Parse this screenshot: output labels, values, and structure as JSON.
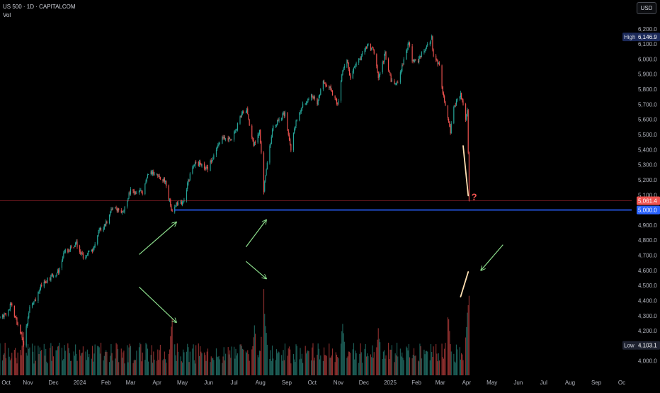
{
  "header": {
    "symbol_line": "US 500 · 1D · CAPITALCOM",
    "volume_label": "Vol",
    "currency": "USD"
  },
  "colors": {
    "background": "#000000",
    "up": "#26a69a",
    "down": "#ef5350",
    "vol_up": "#1d5f58",
    "vol_down": "#8c2f2e",
    "support_line": "#2962ff",
    "price_line": "#f23645",
    "axis_text": "#b2b5be",
    "arrow": "#8bdc8b",
    "highlight_line": "#ffe0b2",
    "high_badge": "#1c2a5a",
    "low_badge": "#1e2230"
  },
  "chart_data": {
    "type": "candlestick",
    "x_ticks": [
      "Oct",
      "Nov",
      "Dec",
      "2024",
      "Feb",
      "Mar",
      "Apr",
      "May",
      "Jun",
      "Jul",
      "Aug",
      "Sep",
      "Oct",
      "Nov",
      "Dec",
      "2025",
      "Feb",
      "Mar",
      "Apr",
      "May",
      "Jun",
      "Jul",
      "Aug",
      "Sep",
      "Oc"
    ],
    "y_ticks": [
      "6,200.0",
      "6,100.0",
      "6,000.0",
      "5,900.0",
      "5,800.0",
      "5,700.0",
      "5,600.0",
      "5,500.0",
      "5,400.0",
      "5,300.0",
      "5,200.0",
      "5,100.0",
      "4,900.0",
      "4,800.0",
      "4,700.0",
      "4,600.0",
      "4,500.0",
      "4,400.0",
      "4,300.0",
      "4,200.0",
      "4,100.0",
      "4,000.0"
    ],
    "y_tick_values": [
      6200,
      6100,
      6000,
      5900,
      5800,
      5700,
      5600,
      5500,
      5400,
      5300,
      5200,
      5100,
      4900,
      4800,
      4700,
      4600,
      4500,
      4400,
      4300,
      4200,
      4100,
      4000
    ],
    "ylim": [
      3973,
      6270
    ],
    "high_label": "High",
    "high_value": "6,146.9",
    "low_label": "Low",
    "low_value": "4,103.1",
    "last_price": "5,061.4",
    "last_price_value": 5061.4,
    "support_level": "5,000.0",
    "support_value": 5000,
    "period": "2023-09-29 to 2025-04-04",
    "anchors": [
      [
        "2023-09-29",
        4290
      ],
      [
        "2023-10-06",
        4310
      ],
      [
        "2023-10-12",
        4380
      ],
      [
        "2023-10-20",
        4240
      ],
      [
        "2023-10-27",
        4120
      ],
      [
        "2023-11-03",
        4350
      ],
      [
        "2023-11-10",
        4410
      ],
      [
        "2023-11-17",
        4510
      ],
      [
        "2023-11-30",
        4560
      ],
      [
        "2023-12-08",
        4600
      ],
      [
        "2023-12-14",
        4720
      ],
      [
        "2023-12-22",
        4750
      ],
      [
        "2023-12-28",
        4780
      ],
      [
        "2024-01-05",
        4690
      ],
      [
        "2024-01-17",
        4740
      ],
      [
        "2024-01-24",
        4860
      ],
      [
        "2024-02-01",
        4910
      ],
      [
        "2024-02-09",
        5020
      ],
      [
        "2024-02-21",
        4980
      ],
      [
        "2024-03-01",
        5130
      ],
      [
        "2024-03-08",
        5120
      ],
      [
        "2024-03-15",
        5120
      ],
      [
        "2024-03-21",
        5240
      ],
      [
        "2024-03-28",
        5250
      ],
      [
        "2024-04-05",
        5200
      ],
      [
        "2024-04-11",
        5190
      ],
      [
        "2024-04-19",
        4975
      ],
      [
        "2024-04-25",
        5050
      ],
      [
        "2024-05-02",
        5050
      ],
      [
        "2024-05-09",
        5210
      ],
      [
        "2024-05-15",
        5300
      ],
      [
        "2024-05-22",
        5310
      ],
      [
        "2024-05-31",
        5270
      ],
      [
        "2024-06-06",
        5350
      ],
      [
        "2024-06-12",
        5420
      ],
      [
        "2024-06-18",
        5480
      ],
      [
        "2024-06-28",
        5460
      ],
      [
        "2024-07-05",
        5560
      ],
      [
        "2024-07-10",
        5640
      ],
      [
        "2024-07-16",
        5660
      ],
      [
        "2024-07-24",
        5430
      ],
      [
        "2024-07-31",
        5520
      ],
      [
        "2024-08-05",
        5130
      ],
      [
        "2024-08-09",
        5330
      ],
      [
        "2024-08-16",
        5550
      ],
      [
        "2024-08-26",
        5620
      ],
      [
        "2024-08-30",
        5640
      ],
      [
        "2024-09-06",
        5400
      ],
      [
        "2024-09-12",
        5590
      ],
      [
        "2024-09-20",
        5700
      ],
      [
        "2024-09-30",
        5760
      ],
      [
        "2024-10-07",
        5700
      ],
      [
        "2024-10-14",
        5860
      ],
      [
        "2024-10-23",
        5800
      ],
      [
        "2024-10-31",
        5700
      ],
      [
        "2024-11-06",
        5920
      ],
      [
        "2024-11-11",
        6010
      ],
      [
        "2024-11-15",
        5870
      ],
      [
        "2024-11-22",
        5970
      ],
      [
        "2024-12-06",
        6090
      ],
      [
        "2024-12-13",
        6050
      ],
      [
        "2024-12-18",
        5870
      ],
      [
        "2024-12-26",
        6040
      ],
      [
        "2025-01-02",
        5860
      ],
      [
        "2025-01-10",
        5830
      ],
      [
        "2025-01-17",
        5990
      ],
      [
        "2025-01-23",
        6110
      ],
      [
        "2025-01-27",
        6000
      ],
      [
        "2025-02-03",
        5990
      ],
      [
        "2025-02-10",
        6060
      ],
      [
        "2025-02-19",
        6140
      ],
      [
        "2025-02-21",
        6020
      ],
      [
        "2025-02-28",
        5950
      ],
      [
        "2025-03-04",
        5780
      ],
      [
        "2025-03-10",
        5600
      ],
      [
        "2025-03-13",
        5520
      ],
      [
        "2025-03-17",
        5670
      ],
      [
        "2025-03-25",
        5780
      ],
      [
        "2025-03-31",
        5590
      ],
      [
        "2025-04-02",
        5650
      ],
      [
        "2025-04-03",
        5380
      ],
      [
        "2025-04-04",
        5061
      ]
    ],
    "volume_series": {
      "name": "Vol",
      "baseline_relative": 0.25,
      "peaks": [
        [
          "2024-04-19",
          0.72
        ],
        [
          "2024-08-05",
          1.0
        ],
        [
          "2024-07-25",
          0.62
        ],
        [
          "2025-03-10",
          0.82
        ],
        [
          "2025-04-03",
          0.95
        ],
        [
          "2025-04-04",
          1.0
        ],
        [
          "2024-12-18",
          0.6
        ],
        [
          "2024-11-06",
          0.58
        ],
        [
          "2023-10-27",
          0.5
        ]
      ]
    }
  },
  "annotations": {
    "question_mark": "?",
    "arrows": [
      {
        "from": [
          "2024-03-11",
          4705
        ],
        "to": [
          "2024-04-24",
          4920
        ]
      },
      {
        "from": [
          "2024-07-15",
          4755
        ],
        "to": [
          "2024-08-08",
          4935
        ]
      },
      {
        "from": [
          "2024-03-11",
          4490
        ],
        "to": [
          "2024-04-24",
          4255
        ]
      },
      {
        "from": [
          "2024-07-15",
          4660
        ],
        "to": [
          "2024-08-08",
          4545
        ]
      },
      {
        "from": [
          "2025-05-14",
          4770
        ],
        "to": [
          "2025-04-18",
          4600
        ]
      }
    ],
    "highlight_lines": [
      {
        "from": [
          "2025-03-28",
          5425
        ],
        "to": [
          "2025-04-03",
          5095
        ]
      },
      {
        "from": [
          "2025-03-25",
          4425
        ],
        "to": [
          "2025-04-03",
          4590
        ]
      }
    ]
  }
}
